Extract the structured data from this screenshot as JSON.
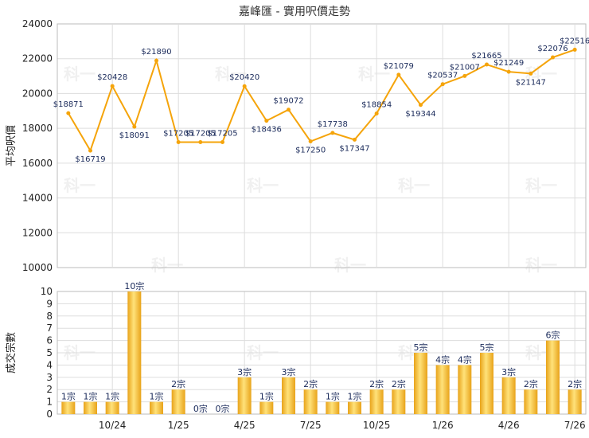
{
  "title": "嘉峰匯 - 實用呎價走勢",
  "colors": {
    "line": "#F5A40A",
    "bar_light": "#FFE27A",
    "bar_dark": "#E8A31A",
    "grid": "#DDDDDD",
    "axis_text": "#222222",
    "label_text": "#1A2A5A"
  },
  "chart_data": [
    {
      "type": "line",
      "ylabel": "平均呎價",
      "ylim": [
        10000,
        24000
      ],
      "yticks": [
        10000,
        12000,
        14000,
        16000,
        18000,
        20000,
        22000,
        24000
      ],
      "grid": true,
      "values": [
        18871,
        16719,
        20428,
        18091,
        21890,
        17205,
        17205,
        17205,
        20420,
        18436,
        19072,
        17250,
        17738,
        17347,
        18854,
        21079,
        19344,
        20537,
        21007,
        21665,
        21249,
        21147,
        22076,
        22516
      ],
      "labels": [
        "$18871",
        "$16719",
        "$20428",
        "$18091",
        "$21890",
        "$17205",
        "$17205",
        "$17205",
        "$20420",
        "$18436",
        "$19072",
        "$17250",
        "$17738",
        "$17347",
        "$18854",
        "$21079",
        "$19344",
        "$20537",
        "$21007",
        "$21665",
        "$21249",
        "$21147",
        "$22076",
        "$22516"
      ]
    },
    {
      "type": "bar",
      "ylabel": "成交宗數",
      "ylim": [
        0,
        10
      ],
      "yticks": [
        0,
        1,
        2,
        3,
        4,
        5,
        6,
        7,
        8,
        9,
        10
      ],
      "grid": true,
      "values": [
        1,
        1,
        1,
        10,
        1,
        2,
        0,
        0,
        3,
        1,
        3,
        2,
        1,
        1,
        2,
        2,
        5,
        4,
        4,
        5,
        3,
        2,
        6,
        2
      ],
      "labels": [
        "1宗",
        "1宗",
        "1宗",
        "10宗",
        "1宗",
        "2宗",
        "0宗",
        "0宗",
        "3宗",
        "1宗",
        "3宗",
        "2宗",
        "1宗",
        "1宗",
        "2宗",
        "2宗",
        "5宗",
        "4宗",
        "4宗",
        "5宗",
        "3宗",
        "2宗",
        "6宗",
        "2宗"
      ],
      "xtick_labels": [
        "10/24",
        "1/25",
        "4/25",
        "7/25",
        "10/25",
        "1/26",
        "4/26",
        "7/26"
      ]
    }
  ],
  "watermark_text": "科一"
}
